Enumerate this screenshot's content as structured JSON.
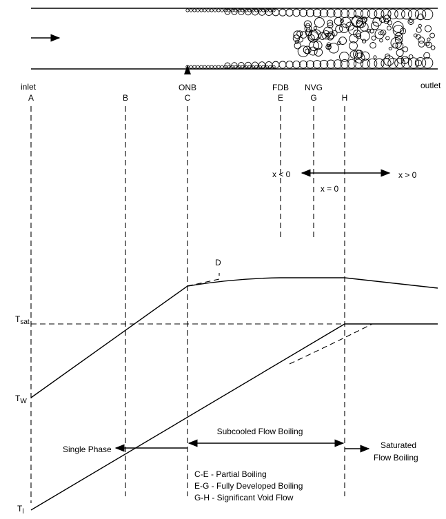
{
  "flow_markers": {
    "inlet": "inlet",
    "outlet": "outlet",
    "onb": "ONB",
    "fdb": "FDB",
    "nvg": "NVG"
  },
  "stations": [
    "A",
    "B",
    "C",
    "E",
    "G",
    "H"
  ],
  "quality": {
    "negative": "x < 0",
    "zero": "x = 0",
    "positive": "x > 0"
  },
  "point_d": "D",
  "temperatures": {
    "saturation": {
      "symbol": "T",
      "subscript": "sat"
    },
    "wall": {
      "symbol": "T",
      "subscript": "W"
    },
    "liquid": {
      "symbol": "T",
      "subscript": "l"
    }
  },
  "regions": {
    "single_phase": "Single Phase",
    "subcooled": "Subcooled Flow Boiling",
    "saturated": [
      "Saturated",
      "Flow Boiling"
    ]
  },
  "legend": [
    "C-E - Partial Boiling",
    "E-G - Fully Developed Boiling",
    "G-H - Significant Void Flow"
  ]
}
